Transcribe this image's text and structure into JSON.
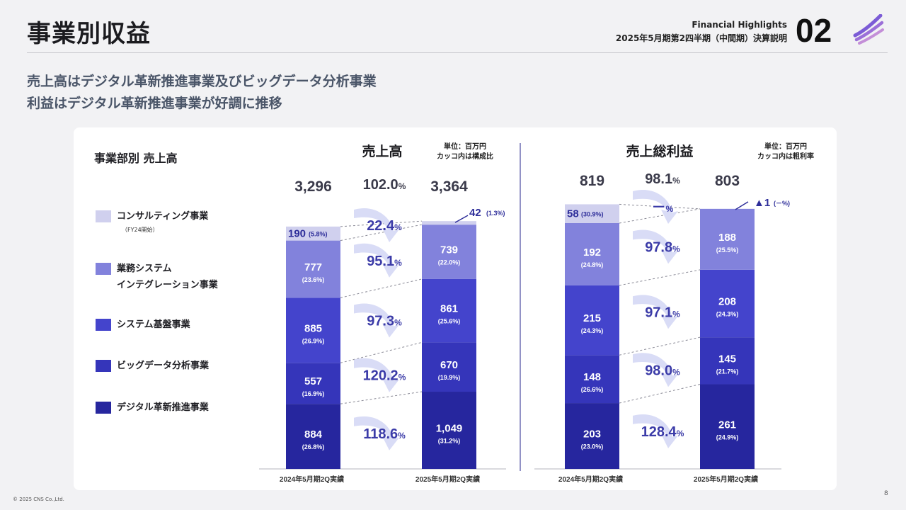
{
  "header": {
    "title": "事業別収益",
    "section_en": "Financial Highlights",
    "section_jp": "2025年5月期第2四半期（中間期）決算説明",
    "section_no": "02"
  },
  "lead": {
    "line1": "売上高はデジタル革新推進事業及びビッグデータ分析事業",
    "line2": "利益はデジタル革新推進事業が好調に推移"
  },
  "legend": {
    "title": "事業部別 売上高",
    "items": [
      {
        "label": "コンサルティング事業",
        "sub": "（FY24開始）",
        "color": "#d0d0ee"
      },
      {
        "label": "業務システム",
        "label2": "インテグレーション事業",
        "color": "#8282dc"
      },
      {
        "label": "システム基盤事業",
        "color": "#4444cc"
      },
      {
        "label": "ビッグデータ分析事業",
        "color": "#3535ba"
      },
      {
        "label": "デジタル革新推進事業",
        "color": "#26269e"
      }
    ]
  },
  "footer": {
    "copyright": "© 2025 CNS Co.,Ltd.",
    "page": "8"
  },
  "chart_data": [
    {
      "type": "bar",
      "stacked": true,
      "title": "売上高",
      "unit_note": [
        "単位：百万円",
        "カッコ内は構成比"
      ],
      "categories": [
        "2024年5月期2Q実績",
        "2025年5月期2Q実績"
      ],
      "totals": [
        "3,296",
        "3,364"
      ],
      "total_growth": "102.0",
      "series": [
        {
          "name": "デジタル革新推進事業",
          "values": [
            884,
            1049
          ],
          "labels": [
            "884",
            "1,049"
          ],
          "shares": [
            "(26.8%)",
            "(31.2%)"
          ],
          "growth": "118.6"
        },
        {
          "name": "ビッグデータ分析事業",
          "values": [
            557,
            670
          ],
          "labels": [
            "557",
            "670"
          ],
          "shares": [
            "(16.9%)",
            "(19.9%)"
          ],
          "growth": "120.2"
        },
        {
          "name": "システム基盤事業",
          "values": [
            885,
            861
          ],
          "labels": [
            "885",
            "861"
          ],
          "shares": [
            "(26.9%)",
            "(25.6%)"
          ],
          "growth": "97.3"
        },
        {
          "name": "業務システムインテグレーション事業",
          "values": [
            777,
            739
          ],
          "labels": [
            "777",
            "739"
          ],
          "shares": [
            "(23.6%)",
            "(22.0%)"
          ],
          "growth": "95.1"
        },
        {
          "name": "コンサルティング事業",
          "values": [
            190,
            42
          ],
          "labels": [
            "190",
            "42"
          ],
          "shares": [
            "(5.8%)",
            "(1.3%)"
          ],
          "growth": "22.4"
        }
      ]
    },
    {
      "type": "bar",
      "stacked": true,
      "title": "売上総利益",
      "unit_note": [
        "単位：百万円",
        "カッコ内は粗利率"
      ],
      "categories": [
        "2024年5月期2Q実績",
        "2025年5月期2Q実績"
      ],
      "totals": [
        "819",
        "803"
      ],
      "total_growth": "98.1",
      "series": [
        {
          "name": "デジタル革新推進事業",
          "values": [
            203,
            261
          ],
          "labels": [
            "203",
            "261"
          ],
          "shares": [
            "(23.0%)",
            "(24.9%)"
          ],
          "growth": "128.4"
        },
        {
          "name": "ビッグデータ分析事業",
          "values": [
            148,
            145
          ],
          "labels": [
            "148",
            "145"
          ],
          "shares": [
            "(26.6%)",
            "(21.7%)"
          ],
          "growth": "98.0"
        },
        {
          "name": "システム基盤事業",
          "values": [
            215,
            208
          ],
          "labels": [
            "215",
            "208"
          ],
          "shares": [
            "(24.3%)",
            "(24.3%)"
          ],
          "growth": "97.1"
        },
        {
          "name": "業務システムインテグレーション事業",
          "values": [
            192,
            188
          ],
          "labels": [
            "192",
            "188"
          ],
          "shares": [
            "(24.8%)",
            "(25.5%)"
          ],
          "growth": "97.8"
        },
        {
          "name": "コンサルティング事業",
          "values": [
            58,
            -1
          ],
          "labels": [
            "58",
            "▲1"
          ],
          "shares": [
            "(30.9%)",
            "(－%)"
          ],
          "growth": "－"
        }
      ]
    }
  ],
  "percent_sign": "%"
}
